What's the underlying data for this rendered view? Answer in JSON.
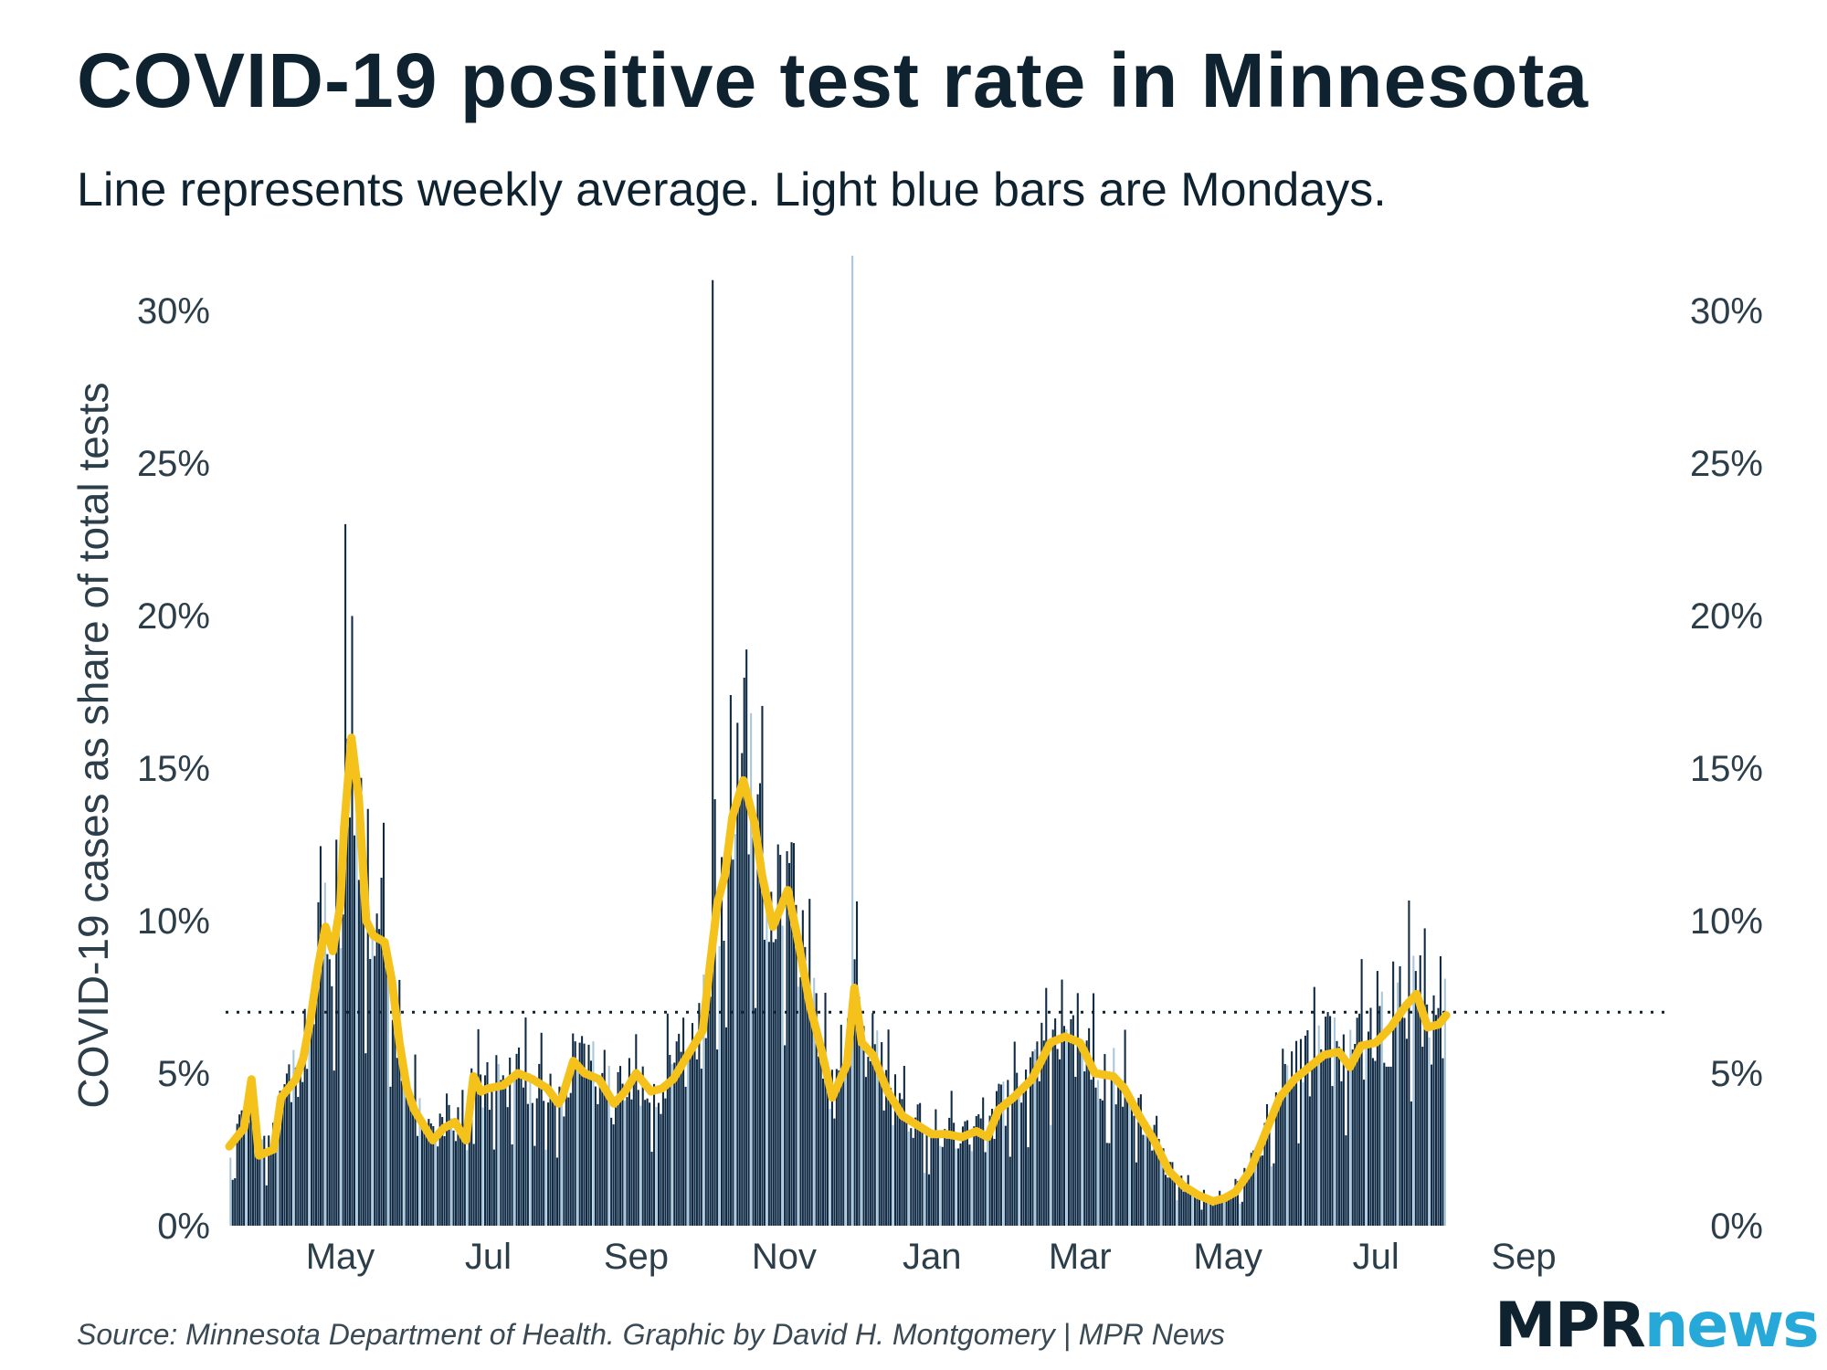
{
  "title": "COVID-19 positive test rate in Minnesota",
  "subtitle": "Line represents weekly average. Light blue bars are Mondays.",
  "source": "Source: Minnesota Department of Health. Graphic by David H. Montgomery | MPR News",
  "logo": {
    "part1": "MPR",
    "part2": "news"
  },
  "colors": {
    "bar": "#0e2a45",
    "monday_bar": "#a9c7dc",
    "line": "#f5c21b",
    "reference_line": "#0e2230",
    "logo_news": "#26a8d8"
  },
  "chart_data": {
    "type": "bar",
    "title": "COVID-19 positive test rate in Minnesota",
    "ylabel": "COVID-19 cases as share of total tests",
    "xlabel": "",
    "ylim": [
      0,
      31.5
    ],
    "yticks": [
      0,
      5,
      10,
      15,
      20,
      25,
      30
    ],
    "ytick_labels": [
      "0%",
      "5%",
      "10%",
      "15%",
      "20%",
      "25%",
      "30%"
    ],
    "x_tick_labels": [
      "May",
      "Jul",
      "Sep",
      "Nov",
      "Jan",
      "Mar",
      "May",
      "Jul",
      "Sep"
    ],
    "x_tick_months": [
      1.0,
      3.0,
      5.0,
      7.0,
      9.0,
      11.0,
      13.0,
      15.0,
      17.0
    ],
    "x_range_months": [
      -0.55,
      18.9
    ],
    "reference_line": 7,
    "series": [
      {
        "name": "Daily positivity rate (bars)",
        "kind": "bar"
      },
      {
        "name": "Weekly average (line)",
        "kind": "line",
        "points": [
          [
            -0.5,
            2.6
          ],
          [
            -0.3,
            3.2
          ],
          [
            -0.2,
            4.8
          ],
          [
            -0.1,
            2.3
          ],
          [
            0.1,
            2.5
          ],
          [
            0.2,
            4.2
          ],
          [
            0.4,
            4.8
          ],
          [
            0.5,
            5.5
          ],
          [
            0.6,
            6.8
          ],
          [
            0.7,
            8.5
          ],
          [
            0.8,
            9.8
          ],
          [
            0.9,
            9.0
          ],
          [
            1.0,
            10.5
          ],
          [
            1.05,
            13.0
          ],
          [
            1.15,
            16.0
          ],
          [
            1.25,
            14.0
          ],
          [
            1.35,
            10.0
          ],
          [
            1.45,
            9.5
          ],
          [
            1.6,
            9.3
          ],
          [
            1.7,
            8.0
          ],
          [
            1.8,
            6.0
          ],
          [
            1.9,
            4.5
          ],
          [
            2.0,
            3.8
          ],
          [
            2.1,
            3.4
          ],
          [
            2.25,
            2.8
          ],
          [
            2.4,
            3.2
          ],
          [
            2.55,
            3.4
          ],
          [
            2.7,
            2.8
          ],
          [
            2.8,
            4.9
          ],
          [
            2.9,
            4.4
          ],
          [
            3.0,
            4.5
          ],
          [
            3.2,
            4.6
          ],
          [
            3.4,
            5.0
          ],
          [
            3.6,
            4.8
          ],
          [
            3.8,
            4.5
          ],
          [
            3.95,
            4.0
          ],
          [
            4.0,
            4.2
          ],
          [
            4.15,
            5.4
          ],
          [
            4.3,
            5.0
          ],
          [
            4.5,
            4.8
          ],
          [
            4.7,
            4.0
          ],
          [
            4.85,
            4.4
          ],
          [
            5.0,
            5.0
          ],
          [
            5.2,
            4.4
          ],
          [
            5.35,
            4.5
          ],
          [
            5.5,
            4.8
          ],
          [
            5.7,
            5.6
          ],
          [
            5.9,
            6.4
          ],
          [
            6.0,
            8.6
          ],
          [
            6.1,
            10.6
          ],
          [
            6.2,
            11.5
          ],
          [
            6.3,
            13.4
          ],
          [
            6.45,
            14.6
          ],
          [
            6.6,
            13.2
          ],
          [
            6.7,
            11.5
          ],
          [
            6.85,
            9.8
          ],
          [
            7.05,
            11.0
          ],
          [
            7.2,
            9.2
          ],
          [
            7.35,
            7.2
          ],
          [
            7.5,
            5.8
          ],
          [
            7.65,
            4.2
          ],
          [
            7.85,
            5.3
          ],
          [
            7.95,
            7.8
          ],
          [
            8.05,
            6.0
          ],
          [
            8.2,
            5.6
          ],
          [
            8.4,
            4.4
          ],
          [
            8.6,
            3.6
          ],
          [
            8.8,
            3.3
          ],
          [
            9.0,
            3.0
          ],
          [
            9.2,
            3.0
          ],
          [
            9.4,
            2.9
          ],
          [
            9.6,
            3.1
          ],
          [
            9.75,
            2.9
          ],
          [
            9.9,
            3.8
          ],
          [
            10.1,
            4.2
          ],
          [
            10.35,
            4.8
          ],
          [
            10.6,
            6.0
          ],
          [
            10.8,
            6.2
          ],
          [
            11.0,
            6.0
          ],
          [
            11.2,
            5.0
          ],
          [
            11.45,
            4.9
          ],
          [
            11.6,
            4.5
          ],
          [
            11.8,
            3.6
          ],
          [
            12.0,
            2.8
          ],
          [
            12.2,
            1.8
          ],
          [
            12.4,
            1.3
          ],
          [
            12.6,
            1.0
          ],
          [
            12.8,
            0.8
          ],
          [
            12.95,
            0.9
          ],
          [
            13.1,
            1.1
          ],
          [
            13.3,
            1.8
          ],
          [
            13.5,
            3.0
          ],
          [
            13.7,
            4.2
          ],
          [
            13.9,
            4.8
          ],
          [
            14.1,
            5.2
          ],
          [
            14.3,
            5.6
          ],
          [
            14.5,
            5.7
          ],
          [
            14.65,
            5.2
          ],
          [
            14.8,
            5.9
          ],
          [
            15.0,
            6.0
          ],
          [
            15.2,
            6.5
          ],
          [
            15.4,
            7.2
          ],
          [
            15.55,
            7.6
          ],
          [
            15.7,
            6.5
          ],
          [
            15.85,
            6.6
          ],
          [
            15.95,
            6.9
          ]
        ]
      }
    ],
    "tall_spikes": [
      {
        "x": 1.08,
        "value": 23.0
      },
      {
        "x": 6.05,
        "value": 31.0
      },
      {
        "x": 7.95,
        "value": 31.8,
        "monday": true
      }
    ]
  }
}
